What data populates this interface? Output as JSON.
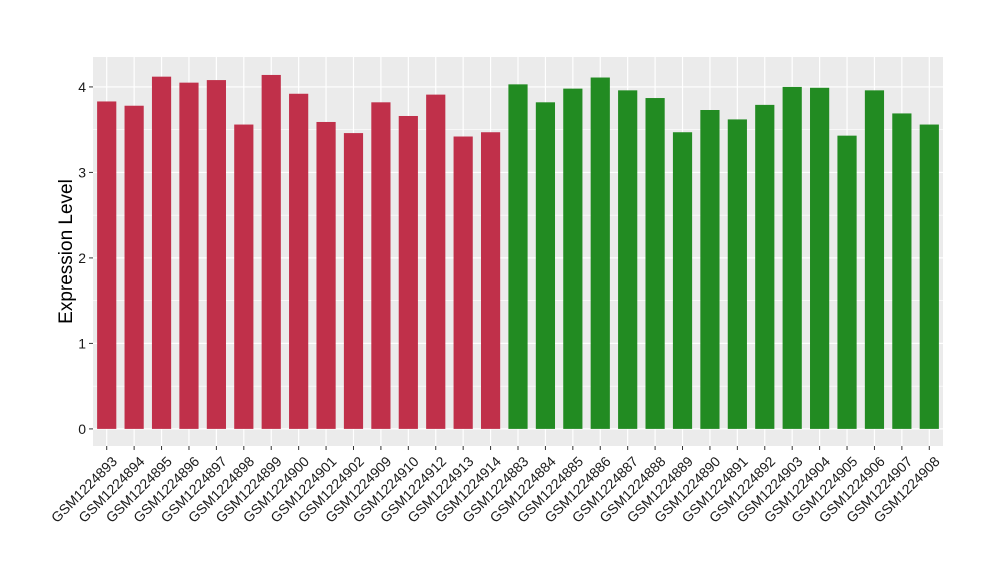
{
  "chart_data": {
    "type": "bar",
    "title": "",
    "ylabel": "Expression Level",
    "xlabel": "",
    "ylim": [
      -0.2,
      4.35
    ],
    "yticks": [
      0,
      1,
      2,
      3,
      4
    ],
    "grid": true,
    "legend": "none",
    "colors": {
      "group_1": "#c0304a",
      "group_2": "#228b22",
      "panel_background": "#ebebeb",
      "grid_line": "#ffffff",
      "axis_text": "#1a1a1a"
    },
    "categories": [
      "GSM1224893",
      "GSM1224894",
      "GSM1224895",
      "GSM1224896",
      "GSM1224897",
      "GSM1224898",
      "GSM1224899",
      "GSM1224900",
      "GSM1224901",
      "GSM1224902",
      "GSM1224909",
      "GSM1224910",
      "GSM1224912",
      "GSM1224913",
      "GSM1224914",
      "GSM1224883",
      "GSM1224884",
      "GSM1224885",
      "GSM1224886",
      "GSM1224887",
      "GSM1224888",
      "GSM1224889",
      "GSM1224890",
      "GSM1224891",
      "GSM1224892",
      "GSM1224903",
      "GSM1224904",
      "GSM1224905",
      "GSM1224906",
      "GSM1224907",
      "GSM1224908"
    ],
    "values": [
      3.83,
      3.78,
      4.12,
      4.05,
      4.08,
      3.56,
      4.14,
      3.92,
      3.59,
      3.46,
      3.82,
      3.66,
      3.91,
      3.42,
      3.47,
      4.03,
      3.82,
      3.98,
      4.11,
      3.96,
      3.87,
      3.47,
      3.73,
      3.62,
      3.79,
      4.0,
      3.99,
      3.43,
      3.96,
      3.69,
      3.56
    ],
    "groups": [
      1,
      1,
      1,
      1,
      1,
      1,
      1,
      1,
      1,
      1,
      1,
      1,
      1,
      1,
      1,
      2,
      2,
      2,
      2,
      2,
      2,
      2,
      2,
      2,
      2,
      2,
      2,
      2,
      2,
      2,
      2
    ]
  }
}
